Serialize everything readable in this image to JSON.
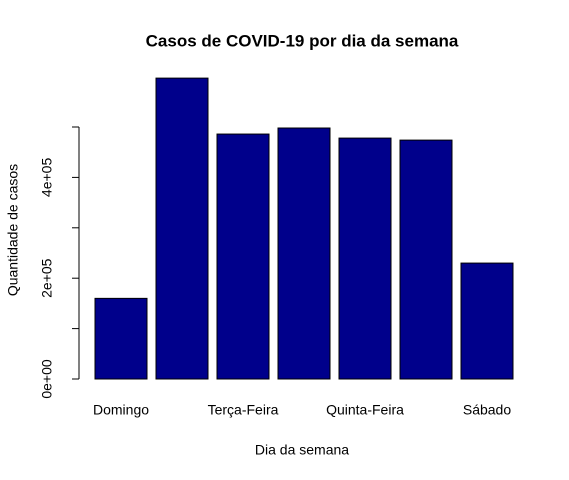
{
  "chart_data": {
    "type": "bar",
    "title": "Casos de COVID-19 por dia da semana",
    "xlabel": "Dia da semana",
    "ylabel": "Quantidade de casos",
    "categories": [
      "Domingo",
      null,
      "Terça-Feira",
      null,
      "Quinta-Feira",
      null,
      "Sábado"
    ],
    "values": [
      160000,
      597000,
      486000,
      498000,
      478000,
      474000,
      230000
    ],
    "color": "#00008b",
    "ylim": [
      0,
      620000
    ],
    "yticks": [
      {
        "value": 0,
        "label": "0e+00"
      },
      {
        "value": 200000,
        "label": "2e+05"
      },
      {
        "value": 400000,
        "label": "4e+05"
      }
    ],
    "yminor_ticks": [
      100000,
      300000,
      500000
    ],
    "grid": false
  }
}
